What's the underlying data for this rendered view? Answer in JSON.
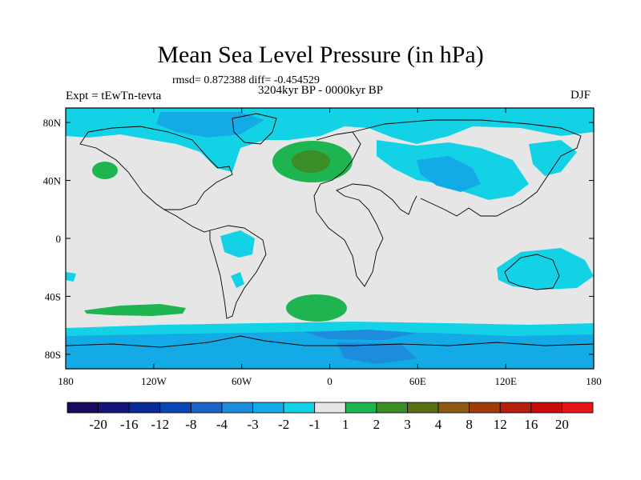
{
  "title": "Mean Sea Level Pressure (in hPa)",
  "stats": "rmsd= 0.872388 diff= -0.454529",
  "expt_label": "Expt = tEwTn-tevta",
  "period": "3204kyr BP - 0000kyr BP",
  "season": "DJF",
  "map": {
    "lon_range": [
      -180,
      180
    ],
    "lat_range": [
      -90,
      90
    ],
    "x_ticks": [
      {
        "lon": -180,
        "label": "180"
      },
      {
        "lon": -120,
        "label": "120W"
      },
      {
        "lon": -60,
        "label": "60W"
      },
      {
        "lon": 0,
        "label": "0"
      },
      {
        "lon": 60,
        "label": "60E"
      },
      {
        "lon": 120,
        "label": "120E"
      },
      {
        "lon": 180,
        "label": "180"
      }
    ],
    "y_ticks": [
      {
        "lat": 80,
        "label": "80N"
      },
      {
        "lat": 40,
        "label": "40N"
      },
      {
        "lat": 0,
        "label": "0"
      },
      {
        "lat": -40,
        "label": "40S"
      },
      {
        "lat": -80,
        "label": "80S"
      }
    ]
  },
  "colorbar": {
    "colors": [
      "#1a0a5e",
      "#14147a",
      "#0a2a96",
      "#0a46b4",
      "#1a64c8",
      "#1e8cdc",
      "#14aae6",
      "#14d2e6",
      "#e6e6e6",
      "#1eb450",
      "#3c8c28",
      "#5a6e14",
      "#8c5a14",
      "#a03c0a",
      "#b41e0a",
      "#c80a0a",
      "#e61414"
    ],
    "labels": [
      "-20",
      "-16",
      "-12",
      "-8",
      "-4",
      "-3",
      "-2",
      "-1",
      "1",
      "2",
      "3",
      "4",
      "8",
      "12",
      "16",
      "20"
    ]
  },
  "field_colors": {
    "neutral": "#e6e6e6",
    "neg1": "#14d2e6",
    "neg2": "#14aae6",
    "neg3": "#1e8cdc",
    "pos1": "#1eb450",
    "pos2": "#3c8c28",
    "pos3": "#5a6e14"
  }
}
